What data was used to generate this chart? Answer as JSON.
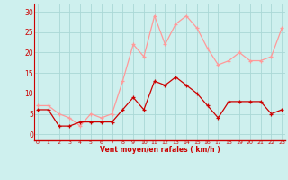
{
  "x": [
    0,
    1,
    2,
    3,
    4,
    5,
    6,
    7,
    8,
    9,
    10,
    11,
    12,
    13,
    14,
    15,
    16,
    17,
    18,
    19,
    20,
    21,
    22,
    23
  ],
  "wind_avg": [
    6,
    6,
    2,
    2,
    3,
    3,
    3,
    3,
    6,
    9,
    6,
    13,
    12,
    14,
    12,
    10,
    7,
    4,
    8,
    8,
    8,
    8,
    5,
    6
  ],
  "wind_gust": [
    7,
    7,
    5,
    4,
    2,
    5,
    4,
    5,
    13,
    22,
    19,
    29,
    22,
    27,
    29,
    26,
    21,
    17,
    18,
    20,
    18,
    18,
    19,
    26
  ],
  "bg_color": "#cef0ee",
  "grid_color": "#aad8d6",
  "avg_color": "#cc0000",
  "gust_color": "#ff9999",
  "tick_color": "#cc0000",
  "xlabel": "Vent moyen/en rafales ( km/h )",
  "xlabel_color": "#cc0000",
  "yticks": [
    0,
    5,
    10,
    15,
    20,
    25,
    30
  ],
  "xticks": [
    0,
    1,
    2,
    3,
    4,
    5,
    6,
    7,
    8,
    9,
    10,
    11,
    12,
    13,
    14,
    15,
    16,
    17,
    18,
    19,
    20,
    21,
    22,
    23
  ],
  "ylim": [
    -1.5,
    32
  ],
  "xlim": [
    -0.3,
    23.3
  ]
}
